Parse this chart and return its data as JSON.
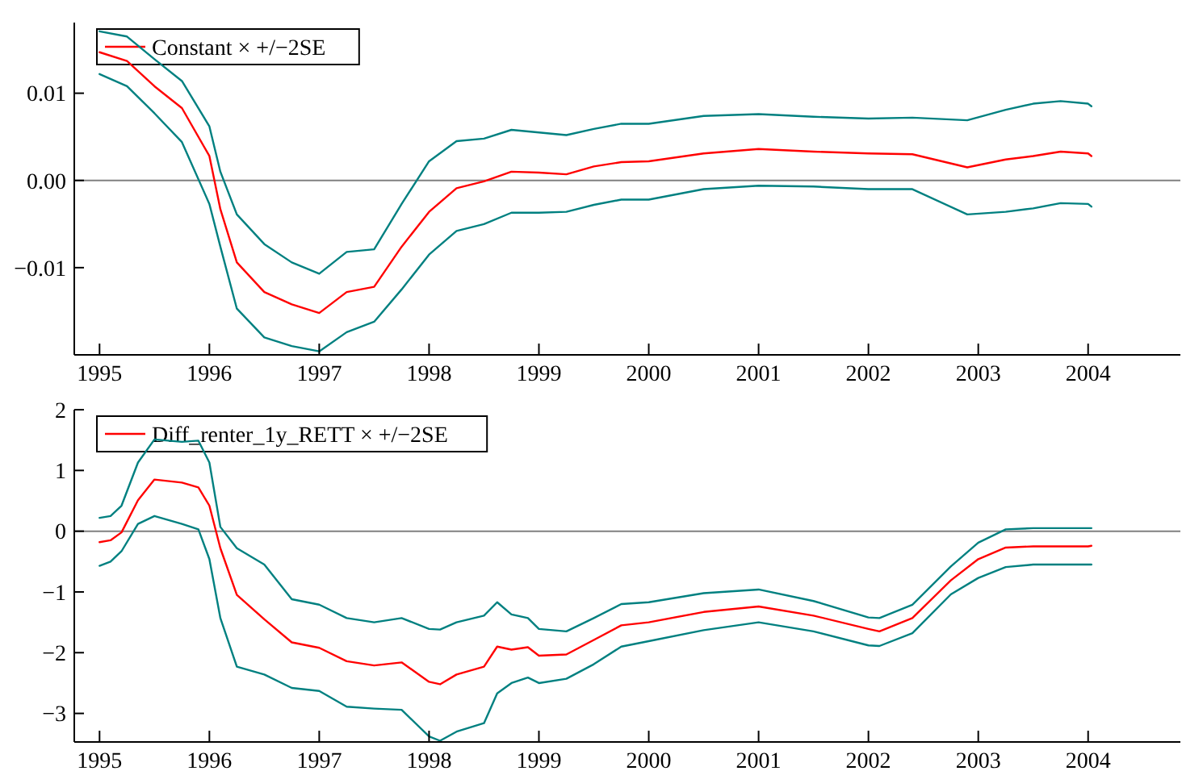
{
  "chart_data": [
    {
      "type": "line",
      "legend": "top left",
      "grid": false,
      "marker": "none",
      "line_style": "solid",
      "x": [
        1995,
        1995.25,
        1995.5,
        1995.75,
        1996,
        1996.1,
        1996.25,
        1996.5,
        1996.75,
        1997,
        1997.25,
        1997.5,
        1997.75,
        1998,
        1998.25,
        1998.5,
        1998.75,
        1999,
        1999.25,
        1999.5,
        1999.75,
        2000,
        2000.5,
        2001,
        2001.5,
        2002,
        2002.4,
        2002.9,
        2003.25,
        2003.5,
        2003.75,
        2004,
        2004.03
      ],
      "series": [
        {
          "name": "Constant × +/−2SE",
          "color": "#ff0000",
          "values": [
            0.0147,
            0.0137,
            0.0108,
            0.0083,
            0.0028,
            -0.0033,
            -0.0094,
            -0.0128,
            -0.0142,
            -0.0152,
            -0.0128,
            -0.0122,
            -0.0076,
            -0.0036,
            -0.0009,
            -0.0001,
            0.001,
            0.0009,
            0.0007,
            0.0016,
            0.0021,
            0.0022,
            0.0031,
            0.0036,
            0.0033,
            0.0031,
            0.003,
            0.0015,
            0.0024,
            0.0028,
            0.0033,
            0.0031,
            0.0028
          ]
        },
        {
          "color": "#008080",
          "values": [
            0.0171,
            0.0165,
            0.0139,
            0.0114,
            0.0062,
            0.001,
            -0.0039,
            -0.0073,
            -0.0094,
            -0.0107,
            -0.0082,
            -0.0079,
            -0.0027,
            0.0022,
            0.0045,
            0.0048,
            0.0058,
            0.0055,
            0.0052,
            0.0059,
            0.0065,
            0.0065,
            0.0074,
            0.0076,
            0.0073,
            0.0071,
            0.0072,
            0.0069,
            0.0081,
            0.0088,
            0.0091,
            0.0088,
            0.0085
          ]
        },
        {
          "color": "#008080",
          "values": [
            0.0122,
            0.0108,
            0.0077,
            0.0044,
            -0.0027,
            -0.0076,
            -0.0147,
            -0.018,
            -0.019,
            -0.0196,
            -0.0174,
            -0.0162,
            -0.0125,
            -0.0085,
            -0.0058,
            -0.005,
            -0.0037,
            -0.0037,
            -0.0036,
            -0.0028,
            -0.0022,
            -0.0022,
            -0.001,
            -0.0006,
            -0.0007,
            -0.001,
            -0.001,
            -0.0039,
            -0.0036,
            -0.0032,
            -0.0026,
            -0.0027,
            -0.003
          ]
        }
      ],
      "xlim": [
        1994.77,
        2004.84
      ],
      "xticks": [
        1995,
        1996,
        1997,
        1998,
        1999,
        2000,
        2001,
        2002,
        2003,
        2004
      ],
      "ylim": [
        -0.02,
        0.0181
      ],
      "yticks": [
        {
          "value": 0.01,
          "label": "0.01"
        },
        {
          "value": 0,
          "label": "0.00"
        },
        {
          "value": -0.01,
          "label": "−0.01"
        }
      ],
      "ref_lines": [
        {
          "axis": "y",
          "value": 0,
          "color": "#808080"
        }
      ]
    },
    {
      "type": "line",
      "legend": "top left",
      "grid": false,
      "marker": "none",
      "line_style": "solid",
      "x": [
        1995,
        1995.1,
        1995.2,
        1995.35,
        1995.5,
        1995.75,
        1995.9,
        1996,
        1996.1,
        1996.25,
        1996.5,
        1996.75,
        1997,
        1997.25,
        1997.5,
        1997.75,
        1998,
        1998.1,
        1998.25,
        1998.5,
        1998.62,
        1998.75,
        1998.9,
        1999,
        1999.25,
        1999.5,
        1999.75,
        2000,
        2000.5,
        2001,
        2001.5,
        2002,
        2002.1,
        2002.4,
        2002.75,
        2003,
        2003.25,
        2003.5,
        2004,
        2004.03
      ],
      "series": [
        {
          "name": "Diff_renter_1y_RETT × +/−2SE",
          "color": "#ff0000",
          "values": [
            -0.18,
            -0.15,
            -0.02,
            0.51,
            0.85,
            0.8,
            0.72,
            0.42,
            -0.28,
            -1.05,
            -1.45,
            -1.83,
            -1.92,
            -2.14,
            -2.21,
            -2.16,
            -2.48,
            -2.52,
            -2.36,
            -2.23,
            -1.9,
            -1.95,
            -1.91,
            -2.05,
            -2.03,
            -1.79,
            -1.55,
            -1.5,
            -1.33,
            -1.24,
            -1.39,
            -1.61,
            -1.65,
            -1.43,
            -0.81,
            -0.46,
            -0.27,
            -0.25,
            -0.25,
            -0.24
          ]
        },
        {
          "color": "#008080",
          "values": [
            0.22,
            0.25,
            0.42,
            1.13,
            1.51,
            1.47,
            1.49,
            1.13,
            0.07,
            -0.28,
            -0.55,
            -1.12,
            -1.21,
            -1.43,
            -1.5,
            -1.43,
            -1.61,
            -1.62,
            -1.5,
            -1.39,
            -1.17,
            -1.37,
            -1.43,
            -1.61,
            -1.65,
            -1.43,
            -1.2,
            -1.17,
            -1.02,
            -0.96,
            -1.15,
            -1.42,
            -1.43,
            -1.21,
            -0.58,
            -0.19,
            0.03,
            0.05,
            0.05,
            0.05
          ]
        },
        {
          "color": "#008080",
          "values": [
            -0.57,
            -0.5,
            -0.33,
            0.12,
            0.25,
            0.12,
            0.03,
            -0.46,
            -1.43,
            -2.23,
            -2.36,
            -2.58,
            -2.63,
            -2.89,
            -2.92,
            -2.94,
            -3.38,
            -3.45,
            -3.3,
            -3.16,
            -2.67,
            -2.5,
            -2.41,
            -2.5,
            -2.43,
            -2.19,
            -1.9,
            -1.81,
            -1.63,
            -1.5,
            -1.65,
            -1.88,
            -1.89,
            -1.68,
            -1.04,
            -0.77,
            -0.59,
            -0.55,
            -0.55,
            -0.55
          ]
        }
      ],
      "xlim": [
        1994.77,
        2004.84
      ],
      "xticks": [
        1995,
        1996,
        1997,
        1998,
        1999,
        2000,
        2001,
        2002,
        2003,
        2004
      ],
      "ylim": [
        -3.47,
        2
      ],
      "yticks": [
        2,
        1,
        0,
        {
          "value": -1,
          "label": "−1"
        },
        {
          "value": -2,
          "label": "−2"
        },
        {
          "value": -3,
          "label": "−3"
        }
      ],
      "ref_lines": [
        {
          "axis": "y",
          "value": 0,
          "color": "#808080"
        }
      ]
    }
  ]
}
